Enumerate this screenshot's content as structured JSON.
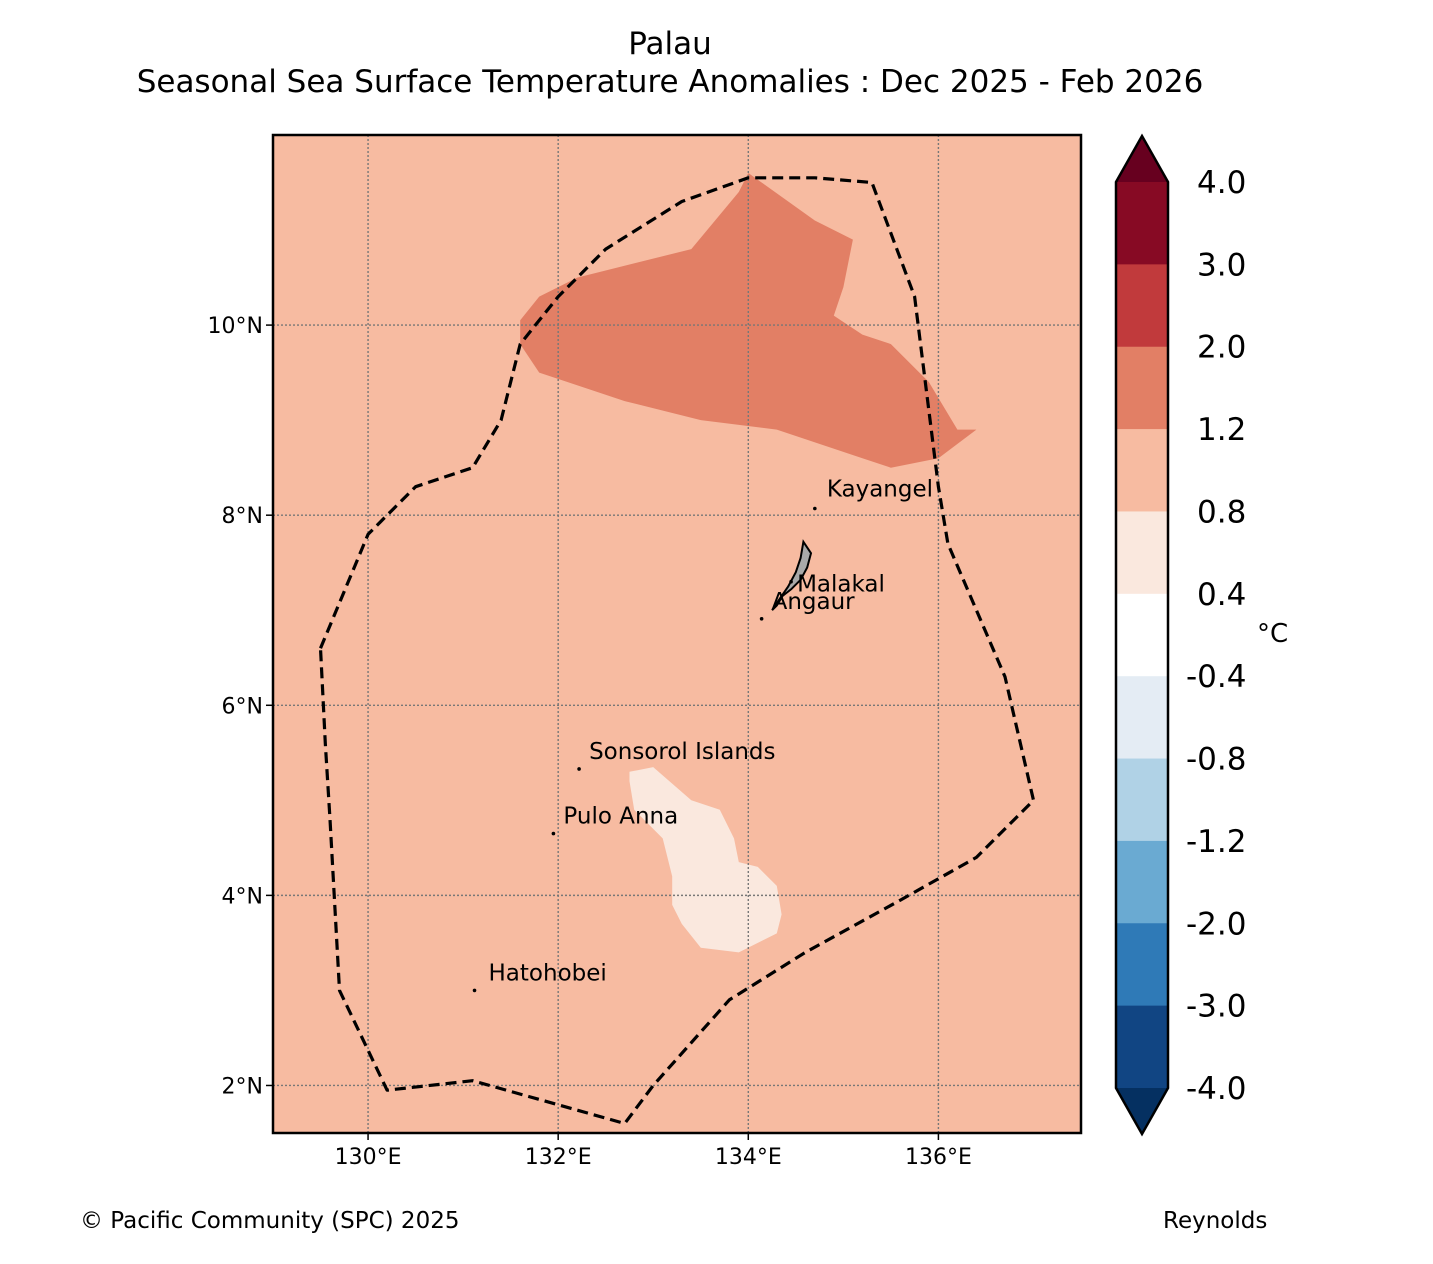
{
  "title": "Palau",
  "subtitle": "Seasonal Sea Surface Temperature Anomalies : Dec 2025 - Feb 2026",
  "map": {
    "lon_range": [
      129,
      137.5
    ],
    "lat_range": [
      1.5,
      12
    ],
    "lat_ticks": [
      {
        "value": 10,
        "label": "10°N"
      },
      {
        "value": 8,
        "label": "8°N"
      },
      {
        "value": 6,
        "label": "6°N"
      },
      {
        "value": 4,
        "label": "4°N"
      },
      {
        "value": 2,
        "label": "2°N"
      }
    ],
    "lon_ticks": [
      {
        "value": 130,
        "label": "130°E"
      },
      {
        "value": 132,
        "label": "132°E"
      },
      {
        "value": 134,
        "label": "134°E"
      },
      {
        "value": 136,
        "label": "136°E"
      }
    ],
    "background_anomaly_color": "#f7bba1",
    "anomaly_regions": [
      {
        "name": "warm-anomaly-region",
        "range": "1.2 to 2.0",
        "color": "#e27f65",
        "points": [
          [
            131.6,
            10.05
          ],
          [
            131.8,
            10.3
          ],
          [
            132.2,
            10.5
          ],
          [
            133.4,
            10.8
          ],
          [
            133.9,
            11.4
          ],
          [
            134.0,
            11.6
          ],
          [
            134.7,
            11.1
          ],
          [
            135.1,
            10.9
          ],
          [
            135.0,
            10.4
          ],
          [
            134.9,
            10.1
          ],
          [
            135.2,
            9.9
          ],
          [
            135.5,
            9.8
          ],
          [
            135.9,
            9.4
          ],
          [
            136.2,
            8.9
          ],
          [
            136.4,
            8.9
          ],
          [
            136.0,
            8.6
          ],
          [
            135.5,
            8.5
          ],
          [
            135.2,
            8.6
          ],
          [
            134.3,
            8.9
          ],
          [
            133.5,
            9.0
          ],
          [
            132.7,
            9.2
          ],
          [
            131.8,
            9.5
          ],
          [
            131.6,
            9.8
          ]
        ]
      },
      {
        "name": "cool-anomaly-region",
        "range": "0.4 to 0.8",
        "color": "#fae8de",
        "points": [
          [
            132.75,
            5.3
          ],
          [
            133.0,
            5.35
          ],
          [
            133.4,
            5.0
          ],
          [
            133.7,
            4.9
          ],
          [
            133.85,
            4.6
          ],
          [
            133.9,
            4.35
          ],
          [
            134.1,
            4.3
          ],
          [
            134.3,
            4.1
          ],
          [
            134.35,
            3.8
          ],
          [
            134.3,
            3.6
          ],
          [
            133.9,
            3.4
          ],
          [
            133.5,
            3.45
          ],
          [
            133.3,
            3.7
          ],
          [
            133.2,
            3.9
          ],
          [
            133.2,
            4.2
          ],
          [
            133.1,
            4.6
          ],
          [
            132.8,
            4.9
          ],
          [
            132.75,
            5.2
          ]
        ]
      }
    ],
    "eez_boundary": [
      [
        129.5,
        6.6
      ],
      [
        130.0,
        7.8
      ],
      [
        130.5,
        8.3
      ],
      [
        131.1,
        8.5
      ],
      [
        131.4,
        9.0
      ],
      [
        131.6,
        9.8
      ],
      [
        132.0,
        10.3
      ],
      [
        132.5,
        10.8
      ],
      [
        133.3,
        11.3
      ],
      [
        134.0,
        11.55
      ],
      [
        134.7,
        11.55
      ],
      [
        135.3,
        11.5
      ],
      [
        135.75,
        10.3
      ],
      [
        136.0,
        8.3
      ],
      [
        136.1,
        7.7
      ],
      [
        136.7,
        6.3
      ],
      [
        137.0,
        5.0
      ],
      [
        136.4,
        4.4
      ],
      [
        135.6,
        3.95
      ],
      [
        134.6,
        3.4
      ],
      [
        133.8,
        2.9
      ],
      [
        133.0,
        2.0
      ],
      [
        132.7,
        1.6
      ],
      [
        131.1,
        2.05
      ],
      [
        130.2,
        1.95
      ],
      [
        129.7,
        3.0
      ],
      [
        129.6,
        4.8
      ],
      [
        129.55,
        5.6
      ],
      [
        129.5,
        6.6
      ]
    ],
    "islands": [
      {
        "name": "Kayangel",
        "lon": 134.7,
        "lat": 8.07,
        "label_dx": 12,
        "label_dy": -12
      },
      {
        "name": "Malakal",
        "lon": 134.45,
        "lat": 7.3,
        "label_dx": 6,
        "label_dy": 10
      },
      {
        "name": "Angaur",
        "lon": 134.14,
        "lat": 6.91,
        "label_dx": 10,
        "label_dy": -10
      },
      {
        "name": "Sonsorol Islands",
        "lon": 132.22,
        "lat": 5.33,
        "label_dx": 10,
        "label_dy": -10
      },
      {
        "name": "Pulo Anna",
        "lon": 131.95,
        "lat": 4.65,
        "label_dx": 10,
        "label_dy": -10
      },
      {
        "name": "Hatohobei",
        "lon": 131.12,
        "lat": 3.0,
        "label_dx": 14,
        "label_dy": -10
      }
    ]
  },
  "colorbar": {
    "unit": "°C",
    "labels": [
      "4.0",
      "3.0",
      "2.0",
      "1.2",
      "0.8",
      "0.4",
      "-0.4",
      "-0.8",
      "-1.2",
      "-2.0",
      "-3.0",
      "-4.0"
    ],
    "colors": [
      "#870a24",
      "#c13a3c",
      "#e27f65",
      "#f7bba1",
      "#fae8de",
      "#ffffff",
      "#e4ecf4",
      "#b0d2e6",
      "#6aaad2",
      "#2f7ab7",
      "#114583"
    ],
    "extend_top_color": "#67001f",
    "extend_bottom_color": "#053061"
  },
  "footer": {
    "copyright": "© Pacific Community (SPC) 2025",
    "source": "Reynolds"
  }
}
